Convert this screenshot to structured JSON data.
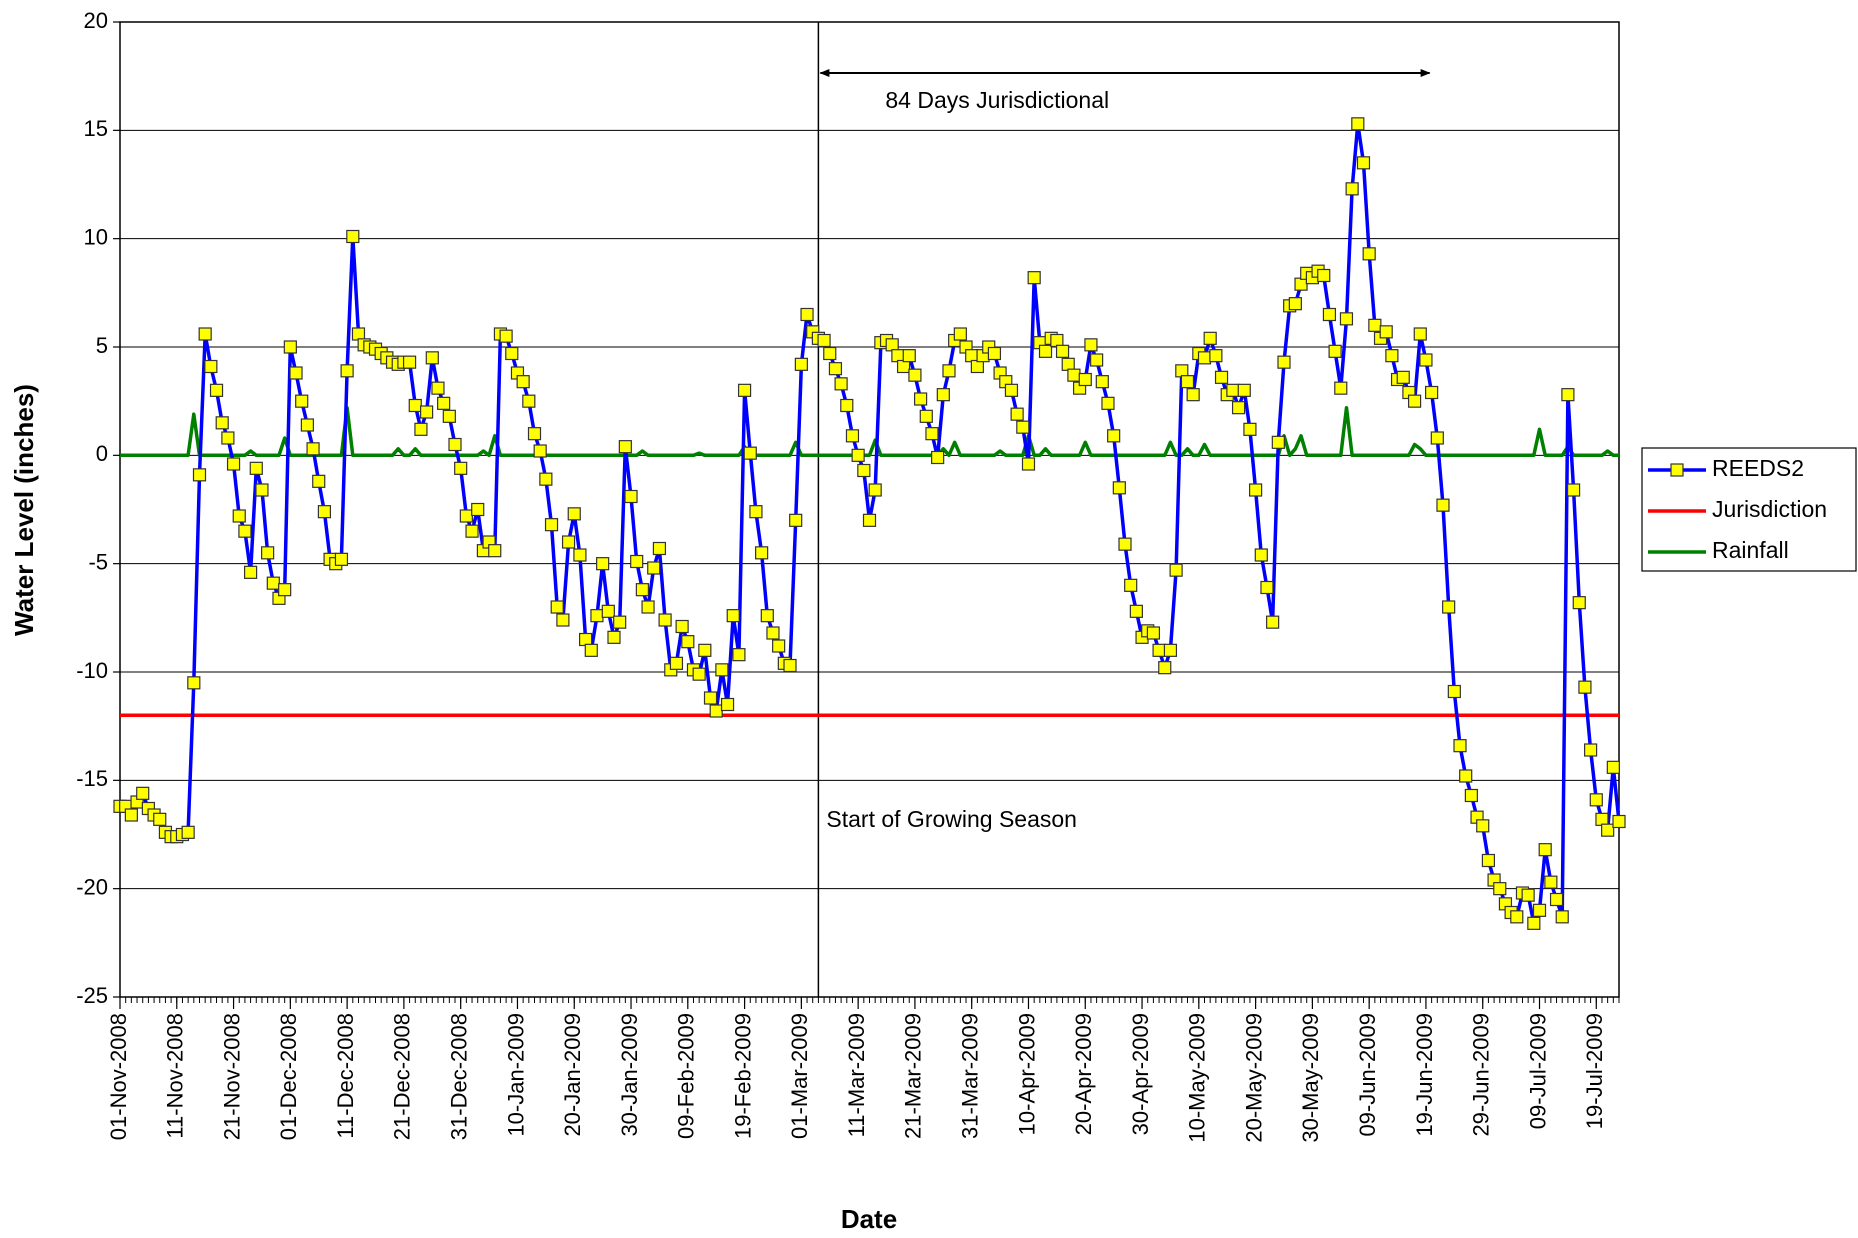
{
  "chart_data": {
    "type": "line",
    "ylabel": "Water Level (inches)",
    "xlabel": "Date",
    "ylim": [
      -25,
      20
    ],
    "yticks": [
      -25,
      -20,
      -15,
      -10,
      -5,
      0,
      5,
      10,
      15,
      20
    ],
    "grid": true,
    "legend": "right",
    "xlim": [
      "2008-11-01",
      "2009-07-23"
    ],
    "xticks": [
      {
        "value": "2008-11-01",
        "label": "01-Nov-2008"
      },
      {
        "value": "2008-11-11",
        "label": "11-Nov-2008"
      },
      {
        "value": "2008-11-21",
        "label": "21-Nov-2008"
      },
      {
        "value": "2008-12-01",
        "label": "01-Dec-2008"
      },
      {
        "value": "2008-12-11",
        "label": "11-Dec-2008"
      },
      {
        "value": "2008-12-21",
        "label": "21-Dec-2008"
      },
      {
        "value": "2008-12-31",
        "label": "31-Dec-2008"
      },
      {
        "value": "2009-01-10",
        "label": "10-Jan-2009"
      },
      {
        "value": "2009-01-20",
        "label": "20-Jan-2009"
      },
      {
        "value": "2009-01-30",
        "label": "30-Jan-2009"
      },
      {
        "value": "2009-02-09",
        "label": "09-Feb-2009"
      },
      {
        "value": "2009-02-19",
        "label": "19-Feb-2009"
      },
      {
        "value": "2009-03-01",
        "label": "01-Mar-2009"
      },
      {
        "value": "2009-03-11",
        "label": "11-Mar-2009"
      },
      {
        "value": "2009-03-21",
        "label": "21-Mar-2009"
      },
      {
        "value": "2009-03-31",
        "label": "31-Mar-2009"
      },
      {
        "value": "2009-04-10",
        "label": "10-Apr-2009"
      },
      {
        "value": "2009-04-20",
        "label": "20-Apr-2009"
      },
      {
        "value": "2009-04-30",
        "label": "30-Apr-2009"
      },
      {
        "value": "2009-05-10",
        "label": "10-May-2009"
      },
      {
        "value": "2009-05-20",
        "label": "20-May-2009"
      },
      {
        "value": "2009-05-30",
        "label": "30-May-2009"
      },
      {
        "value": "2009-06-09",
        "label": "09-Jun-2009"
      },
      {
        "value": "2009-06-19",
        "label": "19-Jun-2009"
      },
      {
        "value": "2009-06-29",
        "label": "29-Jun-2009"
      },
      {
        "value": "2009-07-09",
        "label": "09-Jul-2009"
      },
      {
        "value": "2009-07-19",
        "label": "19-Jul-2009"
      }
    ],
    "x": [
      "2008-11-01",
      "2008-11-02",
      "2008-11-03",
      "2008-11-04",
      "2008-11-05",
      "2008-11-06",
      "2008-11-07",
      "2008-11-08",
      "2008-11-09",
      "2008-11-10",
      "2008-11-11",
      "2008-11-12",
      "2008-11-13",
      "2008-11-14",
      "2008-11-15",
      "2008-11-16",
      "2008-11-17",
      "2008-11-18",
      "2008-11-19",
      "2008-11-20",
      "2008-11-21",
      "2008-11-22",
      "2008-11-23",
      "2008-11-24",
      "2008-11-25",
      "2008-11-26",
      "2008-11-27",
      "2008-11-28",
      "2008-11-29",
      "2008-11-30",
      "2008-12-01",
      "2008-12-02",
      "2008-12-03",
      "2008-12-04",
      "2008-12-05",
      "2008-12-06",
      "2008-12-07",
      "2008-12-08",
      "2008-12-09",
      "2008-12-10",
      "2008-12-11",
      "2008-12-12",
      "2008-12-13",
      "2008-12-14",
      "2008-12-15",
      "2008-12-16",
      "2008-12-17",
      "2008-12-18",
      "2008-12-19",
      "2008-12-20",
      "2008-12-21",
      "2008-12-22",
      "2008-12-23",
      "2008-12-24",
      "2008-12-25",
      "2008-12-26",
      "2008-12-27",
      "2008-12-28",
      "2008-12-29",
      "2008-12-30",
      "2008-12-31",
      "2009-01-01",
      "2009-01-02",
      "2009-01-03",
      "2009-01-04",
      "2009-01-05",
      "2009-01-06",
      "2009-01-07",
      "2009-01-08",
      "2009-01-09",
      "2009-01-10",
      "2009-01-11",
      "2009-01-12",
      "2009-01-13",
      "2009-01-14",
      "2009-01-15",
      "2009-01-16",
      "2009-01-17",
      "2009-01-18",
      "2009-01-19",
      "2009-01-20",
      "2009-01-21",
      "2009-01-22",
      "2009-01-23",
      "2009-01-24",
      "2009-01-25",
      "2009-01-26",
      "2009-01-27",
      "2009-01-28",
      "2009-01-29",
      "2009-01-30",
      "2009-01-31",
      "2009-02-01",
      "2009-02-02",
      "2009-02-03",
      "2009-02-04",
      "2009-02-05",
      "2009-02-06",
      "2009-02-07",
      "2009-02-08",
      "2009-02-09",
      "2009-02-10",
      "2009-02-11",
      "2009-02-12",
      "2009-02-13",
      "2009-02-14",
      "2009-02-15",
      "2009-02-16",
      "2009-02-17",
      "2009-02-18",
      "2009-02-19",
      "2009-02-20",
      "2009-02-21",
      "2009-02-22",
      "2009-02-23",
      "2009-02-24",
      "2009-02-25",
      "2009-02-26",
      "2009-02-27",
      "2009-02-28",
      "2009-03-01",
      "2009-03-02",
      "2009-03-03",
      "2009-03-04",
      "2009-03-05",
      "2009-03-06",
      "2009-03-07",
      "2009-03-08",
      "2009-03-09",
      "2009-03-10",
      "2009-03-11",
      "2009-03-12",
      "2009-03-13",
      "2009-03-14",
      "2009-03-15",
      "2009-03-16",
      "2009-03-17",
      "2009-03-18",
      "2009-03-19",
      "2009-03-20",
      "2009-03-21",
      "2009-03-22",
      "2009-03-23",
      "2009-03-24",
      "2009-03-25",
      "2009-03-26",
      "2009-03-27",
      "2009-03-28",
      "2009-03-29",
      "2009-03-30",
      "2009-03-31",
      "2009-04-01",
      "2009-04-02",
      "2009-04-03",
      "2009-04-04",
      "2009-04-05",
      "2009-04-06",
      "2009-04-07",
      "2009-04-08",
      "2009-04-09",
      "2009-04-10",
      "2009-04-11",
      "2009-04-12",
      "2009-04-13",
      "2009-04-14",
      "2009-04-15",
      "2009-04-16",
      "2009-04-17",
      "2009-04-18",
      "2009-04-19",
      "2009-04-20",
      "2009-04-21",
      "2009-04-22",
      "2009-04-23",
      "2009-04-24",
      "2009-04-25",
      "2009-04-26",
      "2009-04-27",
      "2009-04-28",
      "2009-04-29",
      "2009-04-30",
      "2009-05-01",
      "2009-05-02",
      "2009-05-03",
      "2009-05-04",
      "2009-05-05",
      "2009-05-06",
      "2009-05-07",
      "2009-05-08",
      "2009-05-09",
      "2009-05-10",
      "2009-05-11",
      "2009-05-12",
      "2009-05-13",
      "2009-05-14",
      "2009-05-15",
      "2009-05-16",
      "2009-05-17",
      "2009-05-18",
      "2009-05-19",
      "2009-05-20",
      "2009-05-21",
      "2009-05-22",
      "2009-05-23",
      "2009-05-24",
      "2009-05-25",
      "2009-05-26",
      "2009-05-27",
      "2009-05-28",
      "2009-05-29",
      "2009-05-30",
      "2009-05-31",
      "2009-06-01",
      "2009-06-02",
      "2009-06-03",
      "2009-06-04",
      "2009-06-05",
      "2009-06-06",
      "2009-06-07",
      "2009-06-08",
      "2009-06-09",
      "2009-06-10",
      "2009-06-11",
      "2009-06-12",
      "2009-06-13",
      "2009-06-14",
      "2009-06-15",
      "2009-06-16",
      "2009-06-17",
      "2009-06-18",
      "2009-06-19",
      "2009-06-20",
      "2009-06-21",
      "2009-06-22",
      "2009-06-23",
      "2009-06-24",
      "2009-06-25",
      "2009-06-26",
      "2009-06-27",
      "2009-06-28",
      "2009-06-29",
      "2009-06-30",
      "2009-07-01",
      "2009-07-02",
      "2009-07-03",
      "2009-07-04",
      "2009-07-05",
      "2009-07-06",
      "2009-07-07",
      "2009-07-08",
      "2009-07-09",
      "2009-07-10",
      "2009-07-11",
      "2009-07-12",
      "2009-07-13",
      "2009-07-14",
      "2009-07-15",
      "2009-07-16",
      "2009-07-17",
      "2009-07-18",
      "2009-07-19",
      "2009-07-20",
      "2009-07-21",
      "2009-07-22",
      "2009-07-23"
    ],
    "series": [
      {
        "name": "REEDS2",
        "color": "#0000ff",
        "marker": "square",
        "marker_color": "#ffff00",
        "values": [
          -16.2,
          -16.2,
          -16.6,
          -16.0,
          -15.6,
          -16.3,
          -16.6,
          -16.8,
          -17.4,
          -17.6,
          -17.6,
          -17.5,
          -17.4,
          -10.5,
          -0.9,
          5.6,
          4.1,
          3.0,
          1.5,
          0.8,
          -0.4,
          -2.8,
          -3.5,
          -5.4,
          -0.6,
          -1.6,
          -4.5,
          -5.9,
          -6.6,
          -6.2,
          5.0,
          3.8,
          2.5,
          1.4,
          0.3,
          -1.2,
          -2.6,
          -4.8,
          -5.0,
          -4.8,
          3.9,
          10.1,
          5.6,
          5.1,
          5.0,
          4.9,
          4.7,
          4.5,
          4.3,
          4.2,
          4.3,
          4.3,
          2.3,
          1.2,
          2.0,
          4.5,
          3.1,
          2.4,
          1.8,
          0.5,
          -0.6,
          -2.8,
          -3.5,
          -2.5,
          -4.4,
          -4.0,
          -4.4,
          5.6,
          5.5,
          4.7,
          3.8,
          3.4,
          2.5,
          1.0,
          0.2,
          -1.1,
          -3.2,
          -7.0,
          -7.6,
          -4.0,
          -2.7,
          -4.6,
          -8.5,
          -9.0,
          -7.4,
          -5.0,
          -7.2,
          -8.4,
          -7.7,
          0.4,
          -1.9,
          -4.9,
          -6.2,
          -7.0,
          -5.2,
          -4.3,
          -7.6,
          -9.9,
          -9.6,
          -7.9,
          -8.6,
          -9.9,
          -10.1,
          -9.0,
          -11.2,
          -11.8,
          -9.9,
          -11.5,
          -7.4,
          -9.2,
          3.0,
          0.1,
          -2.6,
          -4.5,
          -7.4,
          -8.2,
          -8.8,
          -9.6,
          -9.7,
          -3.0,
          4.2,
          6.5,
          5.7,
          5.4,
          5.3,
          4.7,
          4.0,
          3.3,
          2.3,
          0.9,
          0.0,
          -0.7,
          -3.0,
          -1.6,
          5.2,
          5.3,
          5.1,
          4.6,
          4.1,
          4.6,
          3.7,
          2.6,
          1.8,
          1.0,
          -0.1,
          2.8,
          3.9,
          5.3,
          5.6,
          5.0,
          4.6,
          4.1,
          4.6,
          5.0,
          4.7,
          3.8,
          3.4,
          3.0,
          1.9,
          1.3,
          -0.4,
          8.2,
          5.2,
          4.8,
          5.4,
          5.3,
          4.8,
          4.2,
          3.7,
          3.1,
          3.5,
          5.1,
          4.4,
          3.4,
          2.4,
          0.9,
          -1.5,
          -4.1,
          -6.0,
          -7.2,
          -8.4,
          -8.1,
          -8.2,
          -9.0,
          -9.8,
          -9.0,
          -5.3,
          3.9,
          3.4,
          2.8,
          4.7,
          4.5,
          5.4,
          4.6,
          3.6,
          2.8,
          3.0,
          2.2,
          3.0,
          1.2,
          -1.6,
          -4.6,
          -6.1,
          -7.7,
          0.6,
          4.3,
          6.9,
          7.0,
          7.9,
          8.4,
          8.2,
          8.5,
          8.3,
          6.5,
          4.8,
          3.1,
          6.3,
          12.3,
          15.3,
          13.5,
          9.3,
          6.0,
          5.4,
          5.7,
          4.6,
          3.5,
          3.6,
          2.9,
          2.5,
          5.6,
          4.4,
          2.9,
          0.8,
          -2.3,
          -7.0,
          -10.9,
          -13.4,
          -14.8,
          -15.7,
          -16.7,
          -17.1,
          -18.7,
          -19.6,
          -20.0,
          -20.7,
          -21.1,
          -21.3,
          -20.2,
          -20.3,
          -21.6,
          -21.0,
          -18.2,
          -19.7,
          -20.5,
          -21.3,
          2.8,
          -1.6,
          -6.8,
          -10.7,
          -13.6,
          -15.9,
          -16.8,
          -17.3,
          -14.4,
          -16.9
        ]
      },
      {
        "name": "Jurisdiction",
        "color": "#ff0000",
        "x": [
          "2008-11-01",
          "2009-07-23"
        ],
        "values": [
          -12,
          -12
        ]
      },
      {
        "name": "Rainfall",
        "color": "#008000",
        "values": [
          0,
          0,
          0,
          0,
          0,
          0,
          0,
          0,
          0,
          0,
          0,
          0,
          0,
          1.9,
          0,
          0,
          0,
          0,
          0,
          0,
          0,
          0,
          0,
          0.2,
          0,
          0,
          0,
          0,
          0,
          0.8,
          0,
          0,
          0,
          0,
          0,
          0,
          0,
          0,
          0,
          0,
          2.2,
          0,
          0,
          0,
          0,
          0,
          0,
          0,
          0,
          0.3,
          0,
          0,
          0.3,
          0,
          0,
          0,
          0,
          0,
          0,
          0,
          0,
          0,
          0,
          0,
          0.2,
          0,
          0.9,
          0,
          0,
          0,
          0,
          0,
          0,
          0,
          0,
          0,
          0,
          0,
          0,
          0,
          0,
          0,
          0,
          0,
          0,
          0,
          0,
          0,
          0,
          0,
          0,
          0,
          0.2,
          0,
          0,
          0,
          0,
          0,
          0,
          0,
          0,
          0,
          0.1,
          0,
          0,
          0,
          0,
          0,
          0,
          0,
          0.4,
          0,
          0,
          0,
          0,
          0,
          0,
          0,
          0,
          0.6,
          0,
          0,
          0,
          0,
          0,
          0,
          0,
          0,
          0,
          0,
          0,
          0,
          0,
          0.7,
          0,
          0,
          0,
          0,
          0,
          0,
          0,
          0,
          0,
          0,
          0,
          0.3,
          0,
          0.6,
          0,
          0,
          0,
          0,
          0,
          0,
          0,
          0.2,
          0,
          0,
          0,
          0,
          0.9,
          0,
          0,
          0.3,
          0,
          0,
          0,
          0,
          0,
          0,
          0.6,
          0,
          0,
          0,
          0,
          0,
          0,
          0,
          0,
          0,
          0,
          0,
          0,
          0,
          0,
          0.6,
          0,
          0,
          0.3,
          0,
          0,
          0.5,
          0,
          0,
          0,
          0,
          0,
          0,
          0,
          0,
          0,
          0,
          0,
          0,
          0,
          0.9,
          0,
          0.3,
          0.9,
          0,
          0,
          0,
          0,
          0,
          0,
          0,
          2.2,
          0,
          0,
          0,
          0,
          0,
          0,
          0,
          0,
          0,
          0,
          0,
          0.5,
          0.3,
          0,
          0,
          0,
          0,
          0,
          0,
          0,
          0,
          0,
          0,
          0,
          0,
          0,
          0,
          0,
          0,
          0,
          0,
          0,
          0,
          1.2,
          0,
          0,
          0,
          0,
          0.4,
          0,
          0,
          0,
          0,
          0,
          0,
          0.2,
          0,
          0
        ]
      }
    ],
    "annotations": [
      {
        "text": "84 Days Jurisdictional",
        "x": [
          "2009-03-04",
          "2009-06-20"
        ]
      },
      {
        "text": "Start of Growing Season",
        "x": "2009-03-04"
      }
    ]
  }
}
